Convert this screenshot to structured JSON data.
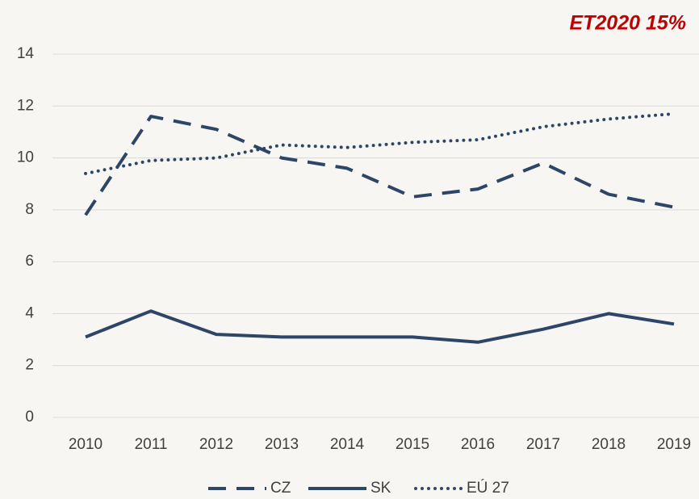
{
  "chart_data": {
    "type": "line",
    "annotation": "ET2020 15%",
    "categories": [
      "2010",
      "2011",
      "2012",
      "2013",
      "2014",
      "2015",
      "2016",
      "2017",
      "2018",
      "2019"
    ],
    "series": [
      {
        "name": "CZ",
        "color": "#2d4567",
        "style": "dashed",
        "values": [
          7.8,
          11.6,
          11.1,
          10.0,
          9.6,
          8.5,
          8.8,
          9.8,
          8.6,
          8.1
        ]
      },
      {
        "name": "SK",
        "color": "#2d4567",
        "style": "solid",
        "values": [
          3.1,
          4.1,
          3.2,
          3.1,
          3.1,
          3.1,
          2.9,
          3.4,
          4.0,
          3.6
        ]
      },
      {
        "name": "EÚ 27",
        "color": "#2d4567",
        "style": "dotted",
        "values": [
          9.4,
          9.9,
          10.0,
          10.5,
          10.4,
          10.6,
          10.7,
          11.2,
          11.5,
          11.7
        ]
      }
    ],
    "ylim": [
      0,
      14
    ],
    "yticks": [
      0,
      2,
      4,
      6,
      8,
      10,
      12,
      14
    ],
    "grid": true,
    "legend": "bottom"
  }
}
